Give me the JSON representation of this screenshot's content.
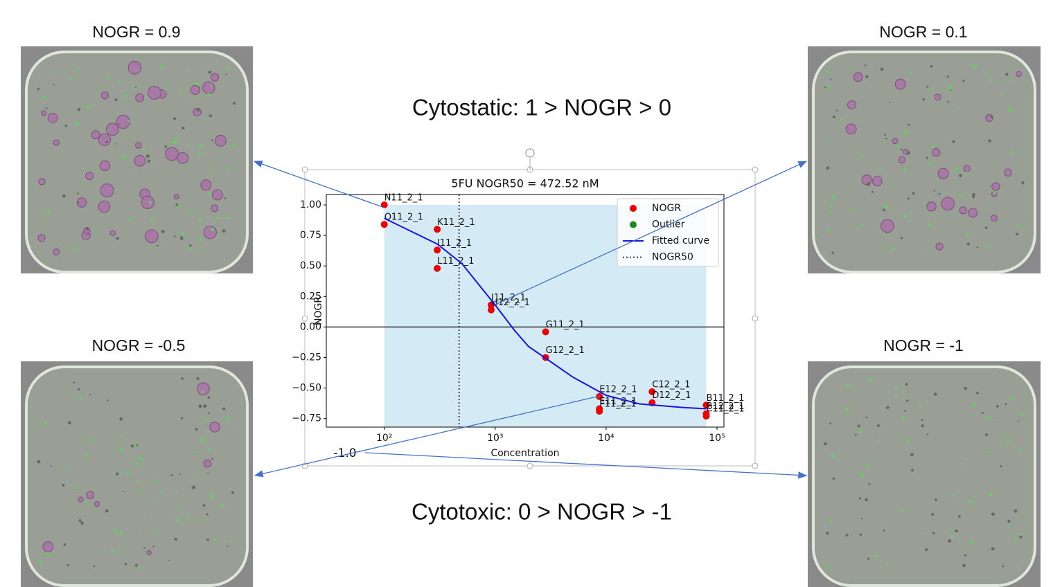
{
  "annotations": {
    "cytostatic": "Cytostatic: 1 > NOGR > 0",
    "cytotoxic": "Cytotoxic: 0 > NOGR > -1",
    "stray_label": "-1.0"
  },
  "panels": [
    {
      "label": "NOGR = 0.9"
    },
    {
      "label": "NOGR = 0.1"
    },
    {
      "label": "NOGR = -0.5"
    },
    {
      "label": "NOGR = -1"
    }
  ],
  "chart_data": {
    "type": "scatter",
    "title": "5FU NOGR50 = 472.52 nM",
    "x_label": "Concentration",
    "y_label": "NOGR",
    "xscale": "log",
    "xlim": [
      30,
      115500
    ],
    "ylim": [
      -0.82,
      1.085
    ],
    "xticks": [
      {
        "value": 100,
        "label": "10²"
      },
      {
        "value": 1000,
        "label": "10³"
      },
      {
        "value": 10000,
        "label": "10⁴"
      },
      {
        "value": 100000,
        "label": "10⁵"
      }
    ],
    "yticks": [
      {
        "value": -0.75,
        "label": "−0.75"
      },
      {
        "value": -0.5,
        "label": "−0.50"
      },
      {
        "value": -0.25,
        "label": "−0.25"
      },
      {
        "value": 0,
        "label": "0.00"
      },
      {
        "value": 0.25,
        "label": "0.25"
      },
      {
        "value": 0.5,
        "label": "0.50"
      },
      {
        "value": 0.75,
        "label": "0.75"
      },
      {
        "value": 1,
        "label": "1.00"
      }
    ],
    "reference_y": 0,
    "legend": "upper right",
    "shade_color": "#d4ebf5",
    "vline": {
      "name": "NOGR50",
      "x": 472.52
    },
    "series": [
      {
        "name": "NOGR",
        "color": "#ee0000",
        "x": [
          100,
          100,
          300,
          300,
          300,
          920,
          920,
          2850,
          2850,
          8700,
          8700,
          8700,
          26000,
          26000,
          80000,
          80000,
          80000
        ],
        "values": [
          1.0,
          0.84,
          0.8,
          0.63,
          0.48,
          0.18,
          0.14,
          -0.04,
          -0.25,
          -0.57,
          -0.67,
          -0.69,
          -0.53,
          -0.62,
          -0.64,
          -0.71,
          -0.73
        ],
        "point_labels": [
          "N11_2_1",
          "O11_2_1",
          "K11_2_1",
          "I11_2_1",
          "L11_2_1",
          "J11_2_1",
          "H12_2_1",
          "G11_2_1",
          "G12_2_1",
          "E12_2_1",
          "E11_2_1",
          "F11_2_1",
          "C12_2_1",
          "D12_2_1",
          "B11_2_1",
          "B12_2_1",
          "C11_2_1"
        ]
      },
      {
        "name": "Outlier",
        "color": "#1a8a1a",
        "x": [],
        "values": []
      },
      {
        "name": "Fitted curve",
        "color": "#1414e6",
        "type": "line",
        "x": [
          100,
          300,
          500,
          1000,
          1500,
          2000,
          3000,
          5000,
          10000,
          20000,
          50000,
          80000
        ],
        "values": [
          0.89,
          0.68,
          0.52,
          0.18,
          -0.03,
          -0.16,
          -0.27,
          -0.41,
          -0.56,
          -0.63,
          -0.66,
          -0.67
        ]
      }
    ]
  }
}
